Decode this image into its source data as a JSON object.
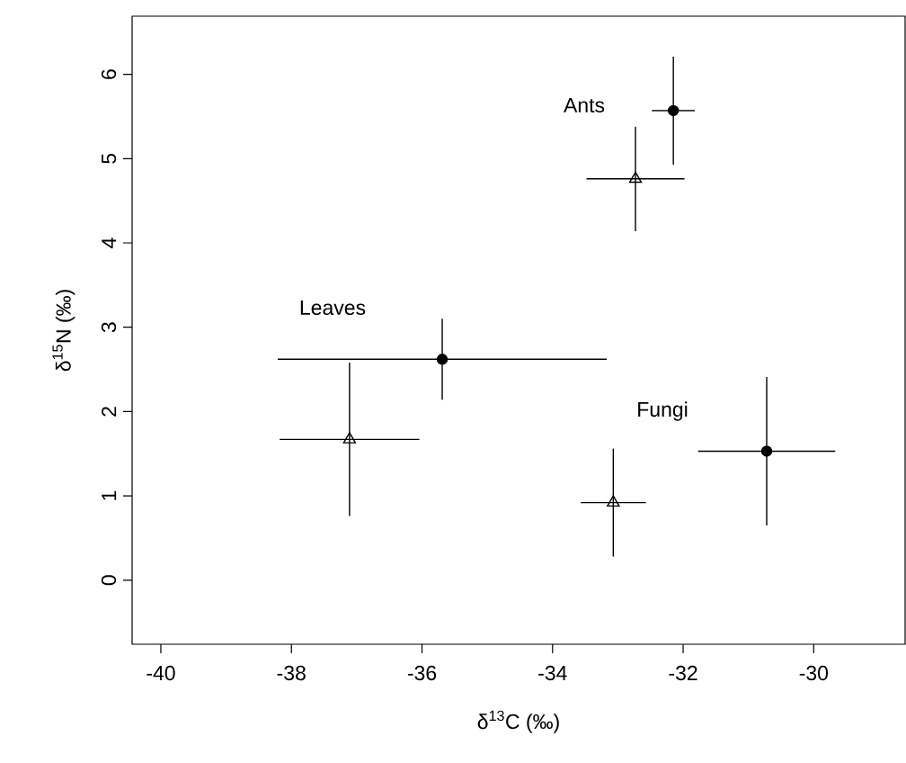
{
  "chart_data": {
    "type": "scatter",
    "xlabel": "δ$^{13}$C (‰)",
    "ylabel": "δ$^{15}$N (‰)",
    "xlim": [
      -40.44,
      -28.6
    ],
    "ylim": [
      -0.76,
      6.69
    ],
    "xticks": [
      -40,
      -38,
      -36,
      -34,
      -32,
      -30
    ],
    "yticks": [
      0,
      1,
      2,
      3,
      4,
      5,
      6
    ],
    "grid": false,
    "series": [
      {
        "color": "#000000",
        "marker": "circle",
        "x": [
          -32.15,
          -35.69,
          -30.72
        ],
        "values": [
          5.57,
          2.62,
          1.53
        ],
        "xerrors": [
          0.33,
          2.52,
          1.05
        ],
        "errors": [
          0.64,
          0.48,
          0.88
        ]
      },
      {
        "color": "#000000",
        "marker": "triangle",
        "x": [
          -32.73,
          -37.11,
          -33.07
        ],
        "values": [
          4.76,
          1.67,
          0.92
        ],
        "xerrors": [
          0.75,
          1.07,
          0.5
        ],
        "errors": [
          0.62,
          0.91,
          0.64
        ]
      }
    ],
    "annotations": [
      "Ants",
      "Leaves",
      "Fungi"
    ]
  }
}
